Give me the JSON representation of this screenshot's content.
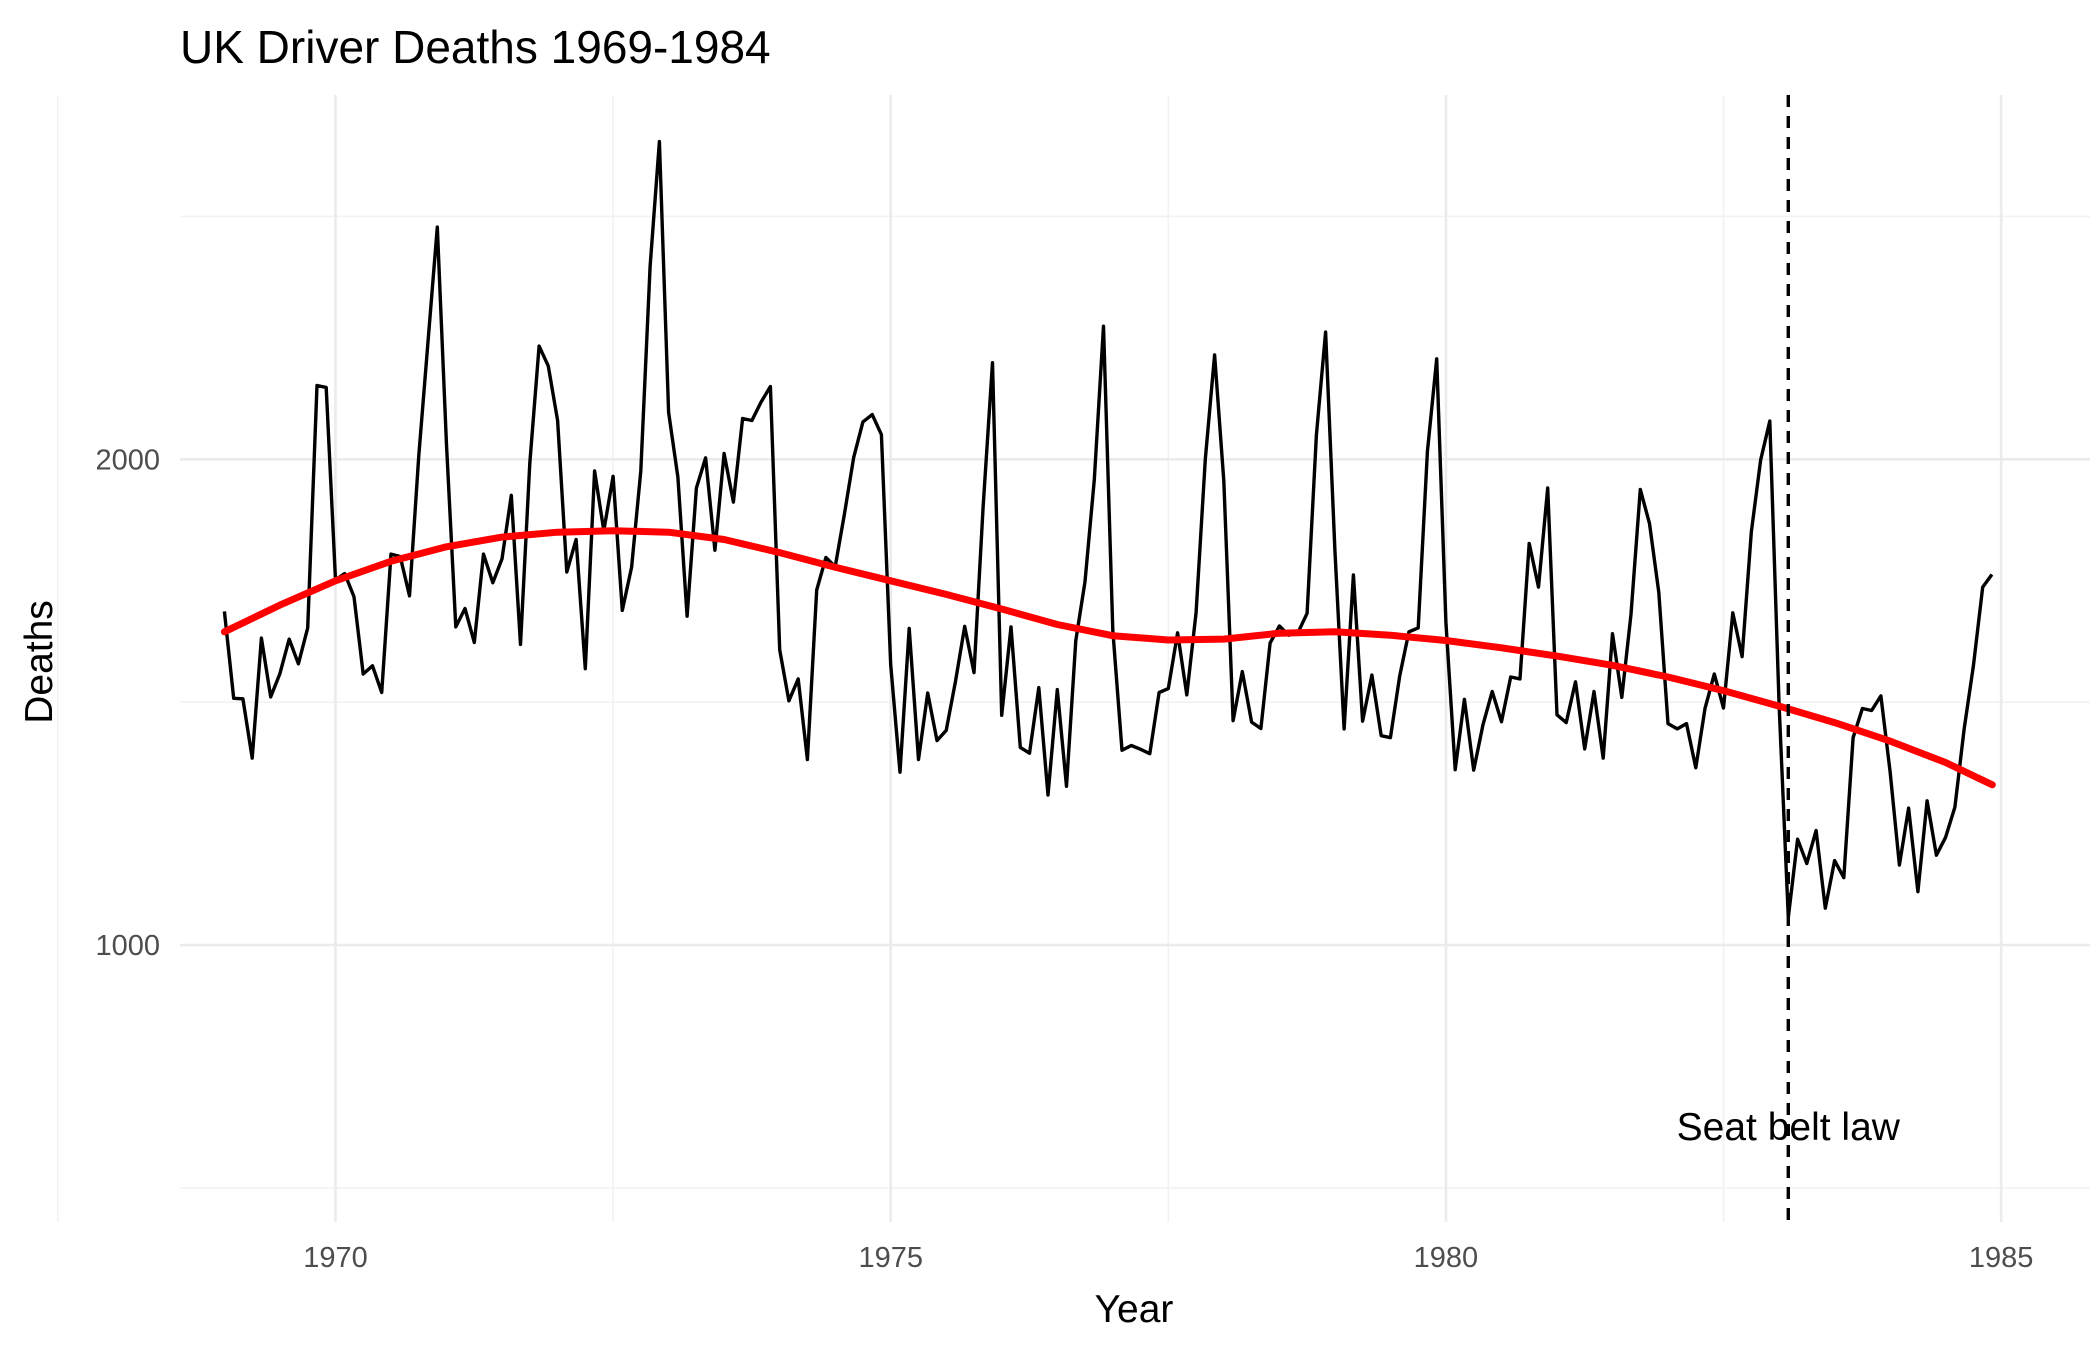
{
  "chart_data": {
    "type": "line",
    "title": "UK Driver Deaths 1969-1984",
    "xlabel": "Year",
    "ylabel": "Deaths",
    "xlim": [
      1968.6,
      1985.8
    ],
    "ylim": [
      430,
      2750
    ],
    "x_ticks": [
      1970,
      1975,
      1980,
      1985
    ],
    "y_ticks": [
      1000,
      2000
    ],
    "grid": true,
    "legend": "none",
    "start_year": 1969,
    "months_per_year": 12,
    "colors": {
      "series": "#000000",
      "trend": "#ff0000",
      "annotation_line": "#000000"
    },
    "series": [
      {
        "values": [
          1687,
          1508,
          1507,
          1385,
          1632,
          1511,
          1559,
          1630,
          1579,
          1653,
          2152,
          2148,
          1752,
          1765,
          1717,
          1558,
          1575,
          1520,
          1805,
          1800,
          1719,
          2008,
          2242,
          2478,
          2030,
          1655,
          1693,
          1623,
          1805,
          1746,
          1795,
          1926,
          1619,
          1992,
          2233,
          2192,
          2080,
          1768,
          1835,
          1569,
          1976,
          1853,
          1965,
          1689,
          1778,
          1976,
          2397,
          2654,
          2097,
          1963,
          1677,
          1941,
          2003,
          1813,
          2012,
          1912,
          2084,
          2080,
          2118,
          2150,
          1608,
          1503,
          1548,
          1382,
          1731,
          1798,
          1779,
          1887,
          2004,
          2077,
          2092,
          2051,
          1577,
          1356,
          1652,
          1382,
          1519,
          1421,
          1442,
          1543,
          1656,
          1561,
          1905,
          2199,
          1473,
          1655,
          1407,
          1395,
          1530,
          1309,
          1526,
          1327,
          1627,
          1748,
          1958,
          2274,
          1648,
          1401,
          1411,
          1403,
          1394,
          1520,
          1528,
          1643,
          1515,
          1685,
          2000,
          2215,
          1956,
          1462,
          1563,
          1459,
          1446,
          1622,
          1657,
          1638,
          1643,
          1683,
          2050,
          2262,
          1813,
          1445,
          1762,
          1461,
          1556,
          1431,
          1427,
          1554,
          1645,
          1653,
          2016,
          2207,
          1665,
          1361,
          1506,
          1360,
          1453,
          1522,
          1460,
          1552,
          1548,
          1827,
          1737,
          1941,
          1474,
          1458,
          1542,
          1404,
          1522,
          1385,
          1641,
          1510,
          1681,
          1938,
          1868,
          1726,
          1456,
          1445,
          1456,
          1365,
          1487,
          1558,
          1488,
          1684,
          1594,
          1850,
          1998,
          2079,
          1494,
          1057,
          1218,
          1168,
          1236,
          1076,
          1174,
          1139,
          1427,
          1487,
          1483,
          1513,
          1357,
          1165,
          1282,
          1110,
          1297,
          1185,
          1222,
          1284,
          1444,
          1575,
          1737,
          1763
        ]
      },
      {
        "x": [
          1969.0,
          1969.5,
          1970.0,
          1970.5,
          1971.0,
          1971.5,
          1972.0,
          1972.5,
          1973.0,
          1973.5,
          1974.0,
          1974.5,
          1975.0,
          1975.5,
          1976.0,
          1976.5,
          1977.0,
          1977.5,
          1978.0,
          1978.5,
          1979.0,
          1979.5,
          1980.0,
          1980.5,
          1981.0,
          1981.5,
          1982.0,
          1982.5,
          1983.0,
          1983.5,
          1984.0,
          1984.5,
          1984.92
        ],
        "values": [
          1645,
          1700,
          1750,
          1790,
          1820,
          1840,
          1850,
          1853,
          1850,
          1835,
          1808,
          1778,
          1750,
          1722,
          1692,
          1660,
          1637,
          1628,
          1630,
          1642,
          1645,
          1638,
          1627,
          1612,
          1595,
          1576,
          1552,
          1524,
          1492,
          1458,
          1420,
          1376,
          1330
        ]
      }
    ],
    "annotations": [
      {
        "x": 1983.083,
        "text": "Seat belt law"
      }
    ]
  }
}
